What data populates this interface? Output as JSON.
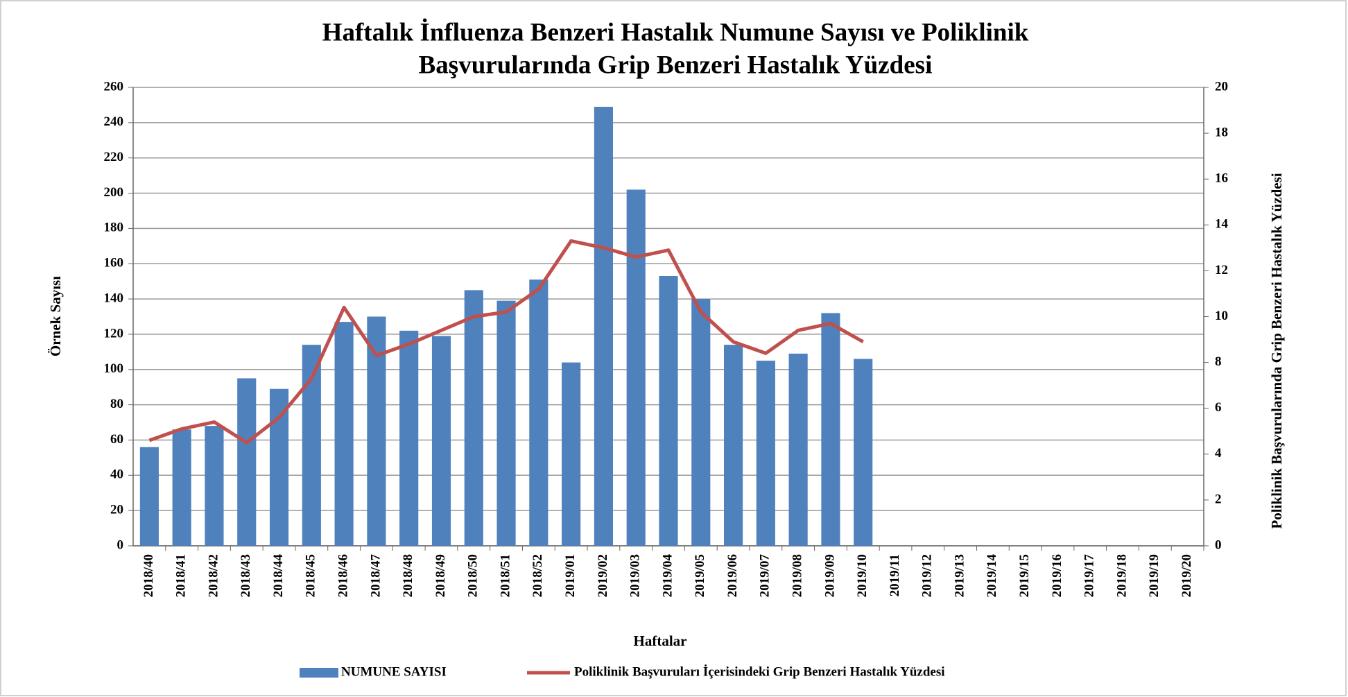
{
  "chart_data": {
    "type": "bar_line",
    "title": "Haftalık İnfluenza Benzeri Hastalık Numune Sayısı ve Poliklinik",
    "subtitle": "Başvurularında Grip Benzeri Hastalık Yüzdesi",
    "x_label": "Haftalar",
    "y_label": "Örnek Sayısı",
    "y2_label": "Poliklinik Başvurularında Grip Benzeri Hastalık Yüzdesi",
    "categories": [
      "2018/40",
      "2018/41",
      "2018/42",
      "2018/43",
      "2018/44",
      "2018/45",
      "2018/46",
      "2018/47",
      "2018/48",
      "2018/49",
      "2018/50",
      "2018/51",
      "2018/52",
      "2019/01",
      "2019/02",
      "2019/03",
      "2019/04",
      "2019/05",
      "2019/06",
      "2019/07",
      "2019/08",
      "2019/09",
      "2019/10",
      "2019/11",
      "2019/12",
      "2019/13",
      "2019/14",
      "2019/15",
      "2019/16",
      "2019/17",
      "2019/18",
      "2019/19",
      "2019/20"
    ],
    "series": [
      {
        "name": "NUMUNE SAYISI",
        "type": "bar",
        "color": "#4f81bd",
        "values": [
          56,
          66,
          68,
          95,
          89,
          114,
          127,
          130,
          122,
          119,
          145,
          139,
          151,
          104,
          249,
          202,
          153,
          140,
          114,
          105,
          109,
          132,
          106,
          null,
          null,
          null,
          null,
          null,
          null,
          null,
          null,
          null,
          null
        ]
      },
      {
        "name": "Poliklinik Başvuruları İçerisindeki Grip Benzeri Hastalık Yüzdesi",
        "type": "line",
        "axis": "y2",
        "color": "#c0504d",
        "values": [
          4.6,
          5.1,
          5.4,
          4.5,
          5.6,
          7.3,
          10.4,
          8.3,
          8.8,
          9.4,
          10.0,
          10.2,
          11.2,
          13.3,
          13.0,
          12.6,
          12.9,
          10.2,
          8.9,
          8.4,
          9.4,
          9.7,
          8.9,
          null,
          null,
          null,
          null,
          null,
          null,
          null,
          null,
          null,
          null
        ]
      }
    ],
    "ylim": [
      0,
      260
    ],
    "yticks": [
      0,
      20,
      40,
      60,
      80,
      100,
      120,
      140,
      160,
      180,
      200,
      220,
      240,
      260
    ],
    "y2lim": [
      0,
      20
    ],
    "y2ticks": [
      0,
      2,
      4,
      6,
      8,
      10,
      12,
      14,
      16,
      18,
      20
    ],
    "grid": true,
    "legend": "bottom"
  }
}
